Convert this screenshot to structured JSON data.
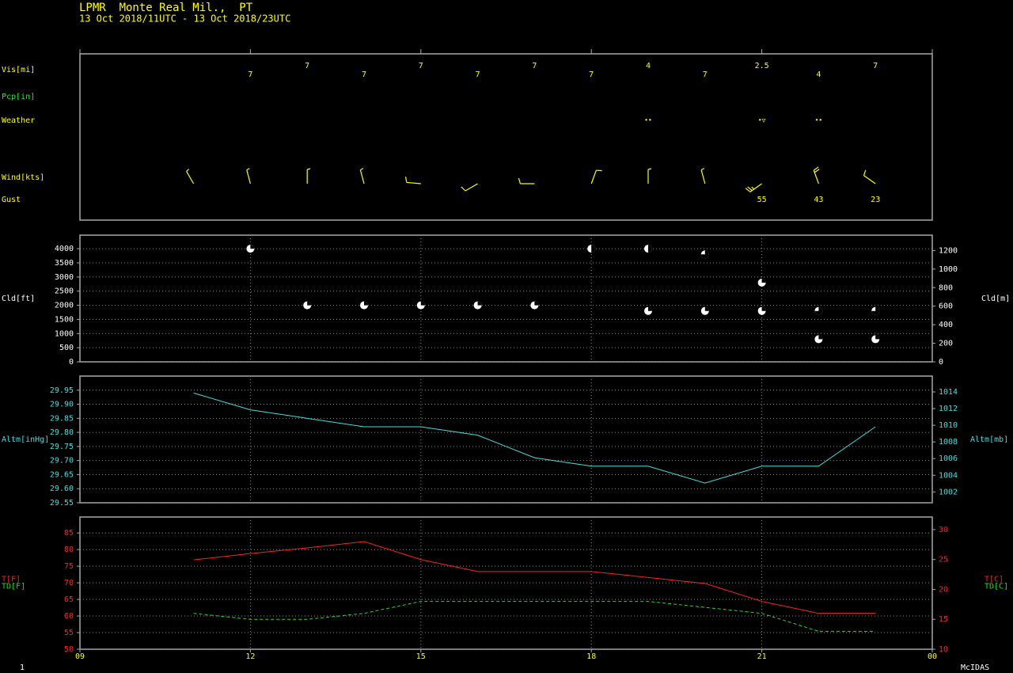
{
  "header": {
    "title": "LPMR  Monte Real Mil.,  PT",
    "subtitle": "13 Oct 2018/11UTC - 13 Oct 2018/23UTC"
  },
  "footer": {
    "page": "1",
    "brand": "McIDAS"
  },
  "chart_data": [
    {
      "type": "surface-obs",
      "xlim": [
        9,
        24
      ],
      "color": "#ffff00",
      "vis": {
        "label": "Vis[mi]",
        "x": [
          12,
          13,
          14,
          15,
          16,
          17,
          18,
          19,
          20,
          21,
          22,
          23
        ],
        "values": [
          7,
          7,
          7,
          7,
          7,
          7,
          7,
          4,
          7,
          2.5,
          4,
          7
        ]
      },
      "precip": {
        "label": "Pcp[in]",
        "color": "#00ff00"
      },
      "weather": {
        "label": "Weather",
        "x": [
          19,
          21,
          22
        ],
        "symbols": [
          "••",
          "•▽",
          "••"
        ]
      },
      "wind": {
        "label": "Wind[kts]",
        "x": [
          11,
          12,
          13,
          14,
          15,
          16,
          17,
          18,
          19,
          20,
          21,
          22,
          23
        ],
        "direction": [
          330,
          345,
          360,
          345,
          275,
          240,
          270,
          20,
          360,
          345,
          235,
          340,
          305
        ],
        "speed": [
          5,
          5,
          5,
          5,
          10,
          10,
          10,
          10,
          5,
          5,
          25,
          20,
          10
        ]
      },
      "gust": {
        "label": "Gust",
        "x": [
          21,
          22,
          23
        ],
        "values": [
          55,
          43,
          23
        ]
      }
    },
    {
      "type": "cloud",
      "ylabel": "Cld[ft]",
      "y2label": "Cld[m]",
      "color": "#ffffff",
      "xlim": [
        9,
        24
      ],
      "x": [
        12,
        13,
        14,
        15,
        16,
        17,
        18,
        19,
        19,
        20,
        20,
        21,
        21,
        22,
        22,
        23,
        23
      ],
      "values": [
        4000,
        2000,
        2000,
        2000,
        2000,
        2000,
        4000,
        4000,
        1800,
        3800,
        1800,
        2800,
        1800,
        1800,
        800,
        1800,
        800
      ],
      "cover_fraction": [
        0.25,
        0.25,
        0.25,
        0.25,
        0.25,
        0.25,
        0.5,
        0.5,
        0.25,
        0.75,
        0.25,
        0.25,
        0.25,
        0.75,
        0.25,
        0.75,
        0.25
      ],
      "ylim": [
        0,
        4480
      ],
      "yticks": [
        0,
        500,
        1000,
        1500,
        2000,
        2500,
        3000,
        3500,
        4000
      ],
      "y2lim": [
        0,
        1365.5
      ],
      "y2ticks": [
        0,
        200,
        400,
        600,
        800,
        1000,
        1200
      ],
      "grid": true
    },
    {
      "type": "line",
      "ylabel": "Altm[inHg]",
      "y2label": "Altm[mb]",
      "color": "#40e0e0",
      "xlim": [
        9,
        24
      ],
      "x": [
        11,
        12,
        13,
        14,
        15,
        16,
        17,
        18,
        19,
        20,
        21,
        22,
        23
      ],
      "values": [
        29.94,
        29.88,
        29.85,
        29.82,
        29.82,
        29.79,
        29.71,
        29.68,
        29.68,
        29.62,
        29.68,
        29.68,
        29.82
      ],
      "ylim": [
        29.55,
        30.0
      ],
      "yticks": [
        29.55,
        {
          "value": 29.6,
          "label": "29.60"
        },
        29.65,
        {
          "value": 29.7,
          "label": "29.70"
        },
        29.75,
        {
          "value": 29.8,
          "label": "29.80"
        },
        29.85,
        {
          "value": 29.9,
          "label": "29.90"
        },
        29.95
      ],
      "y2lim": [
        1000.7,
        1015.9
      ],
      "y2ticks": [
        1002,
        1004,
        1006,
        1008,
        1010,
        1012,
        1014
      ],
      "grid": true
    },
    {
      "type": "line",
      "color": "#ff2020",
      "xlim": [
        9,
        24
      ],
      "x": [
        11,
        12,
        13,
        14,
        15,
        16,
        17,
        18,
        19,
        20,
        21,
        22,
        23
      ],
      "series": [
        {
          "name": "T[F]",
          "color": "#ff2020",
          "dashed": false,
          "values": [
            76.9,
            78.8,
            80.5,
            82.4,
            77,
            73.4,
            73.4,
            73.4,
            71.6,
            69.8,
            64.4,
            60.8,
            60.8
          ]
        },
        {
          "name": "TD[F]",
          "color": "#20e020",
          "dashed": true,
          "values": [
            60.8,
            59,
            59,
            60.8,
            64.4,
            64.4,
            64.4,
            64.4,
            64.4,
            62.6,
            60.8,
            55.4,
            55.4
          ]
        }
      ],
      "y2labels": [
        "T[C]",
        "TD[C]"
      ],
      "ylim": [
        50,
        89.8
      ],
      "yticks": [
        50,
        55,
        60,
        65,
        70,
        75,
        80,
        85
      ],
      "y2lim": [
        10,
        32.1
      ],
      "y2ticks": [
        10,
        15,
        20,
        25,
        30
      ],
      "xticks": [
        {
          "value": 9,
          "label": "09"
        },
        12,
        15,
        18,
        21,
        {
          "value": 24,
          "label": "00"
        }
      ],
      "grid": true
    }
  ]
}
